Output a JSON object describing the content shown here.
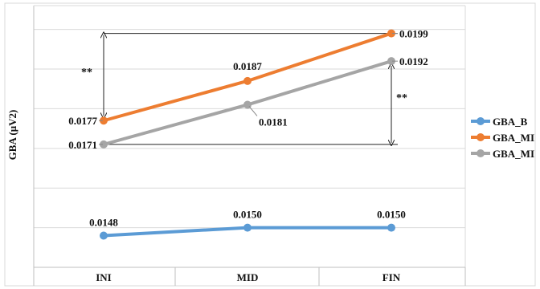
{
  "chart_data": {
    "type": "line",
    "title": "",
    "xlabel": "",
    "ylabel": "GBA (μV2)",
    "categories": [
      "INI",
      "MID",
      "FIN"
    ],
    "ylim": [
      0.014,
      0.0206
    ],
    "grid": true,
    "legend_position": "right",
    "series": [
      {
        "name": "GBA_B",
        "color": "#5B9BD5",
        "values": [
          0.0148,
          0.015,
          0.015
        ],
        "labels": [
          "0.0148",
          "0.0150",
          "0.0150"
        ]
      },
      {
        "name": "GBA_MI",
        "color": "#ED7D31",
        "values": [
          0.0177,
          0.0187,
          0.0199
        ],
        "labels": [
          "0.0177",
          "0.0187",
          "0.0199"
        ]
      },
      {
        "name": "GBA_MI",
        "color": "#A5A5A5",
        "values": [
          0.0171,
          0.0181,
          0.0192
        ],
        "labels": [
          "0.0171",
          "0.0181",
          "0.0192"
        ]
      }
    ],
    "annotations": [
      {
        "text": "**",
        "category": "INI",
        "from": 0.0177,
        "to": 0.0199
      },
      {
        "text": "**",
        "category": "FIN",
        "from": 0.0192,
        "to": 0.0171
      }
    ]
  }
}
